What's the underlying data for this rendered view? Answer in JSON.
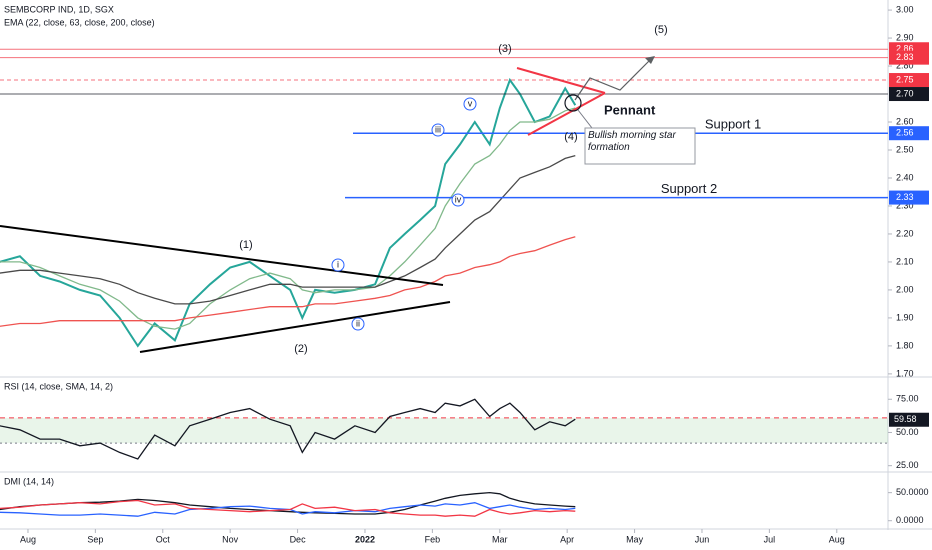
{
  "chart_data": [
    {
      "type": "line",
      "title": "SEMBCORP IND, 1D, SGX",
      "subtitle": "EMA (22, close, 63, close, 200, close)",
      "x": [
        -0.42,
        -0.12,
        0.18,
        0.47,
        0.77,
        1.07,
        1.36,
        1.63,
        1.88,
        2.18,
        2.4,
        2.7,
        3.0,
        3.29,
        3.59,
        3.89,
        4.07,
        4.26,
        4.55,
        4.85,
        5.15,
        5.37,
        5.59,
        5.82,
        6.04,
        6.19,
        6.41,
        6.63,
        6.85,
        7.0,
        7.15,
        7.3,
        7.52,
        7.74,
        7.97,
        8.12
      ],
      "xlim": [
        -0.415,
        12.76
      ],
      "xticks": [
        {
          "value": 0,
          "label": "Aug"
        },
        {
          "value": 1,
          "label": "Sep"
        },
        {
          "value": 2,
          "label": "Oct"
        },
        {
          "value": 3,
          "label": "Nov"
        },
        {
          "value": 4,
          "label": "Dec"
        },
        {
          "value": 5,
          "label": "2022"
        },
        {
          "value": 6,
          "label": "Feb"
        },
        {
          "value": 7,
          "label": "Mar"
        },
        {
          "value": 8,
          "label": "Apr"
        },
        {
          "value": 9,
          "label": "May"
        },
        {
          "value": 10,
          "label": "Jun"
        },
        {
          "value": 11,
          "label": "Jul"
        },
        {
          "value": 12,
          "label": "Aug"
        }
      ],
      "ylim": [
        1.696,
        3.036
      ],
      "yticks": [
        {
          "value": 3.0,
          "label": "3.00"
        },
        {
          "value": 2.9,
          "label": "2.90"
        },
        {
          "value": 2.8,
          "label": "2.80"
        },
        {
          "value": 2.6,
          "label": "2.60"
        },
        {
          "value": 2.5,
          "label": "2.50"
        },
        {
          "value": 2.4,
          "label": "2.40"
        },
        {
          "value": 2.3,
          "label": "2.30"
        },
        {
          "value": 2.2,
          "label": "2.20"
        },
        {
          "value": 2.1,
          "label": "2.10"
        },
        {
          "value": 2.0,
          "label": "2.00"
        },
        {
          "value": 1.9,
          "label": "1.90"
        },
        {
          "value": 1.8,
          "label": "1.80"
        },
        {
          "value": 1.7,
          "label": "1.70"
        }
      ],
      "series": [
        {
          "color": "#26a69a",
          "values": [
            2.1,
            2.12,
            2.05,
            2.03,
            2.0,
            1.98,
            1.9,
            1.8,
            1.88,
            1.82,
            1.95,
            2.02,
            2.08,
            2.1,
            2.05,
            2.0,
            1.9,
            2.0,
            1.99,
            2.0,
            2.02,
            2.15,
            2.2,
            2.25,
            2.3,
            2.45,
            2.52,
            2.6,
            2.52,
            2.65,
            2.75,
            2.7,
            2.6,
            2.62,
            2.72,
            2.66
          ]
        },
        {
          "color": "#81b98b",
          "values": [
            2.1,
            2.1,
            2.08,
            2.05,
            2.02,
            2.0,
            1.96,
            1.9,
            1.87,
            1.86,
            1.88,
            1.95,
            2.0,
            2.04,
            2.06,
            2.04,
            2.0,
            1.99,
            2.0,
            2.0,
            2.01,
            2.05,
            2.1,
            2.16,
            2.22,
            2.3,
            2.38,
            2.45,
            2.48,
            2.52,
            2.57,
            2.6,
            2.6,
            2.61,
            2.64,
            2.65
          ]
        },
        {
          "color": "#4a4a4a",
          "values": [
            2.06,
            2.07,
            2.07,
            2.06,
            2.05,
            2.04,
            2.02,
            1.99,
            1.97,
            1.95,
            1.95,
            1.96,
            1.98,
            2.0,
            2.02,
            2.02,
            2.01,
            2.01,
            2.01,
            2.01,
            2.01,
            2.03,
            2.05,
            2.08,
            2.11,
            2.15,
            2.2,
            2.25,
            2.28,
            2.32,
            2.36,
            2.4,
            2.42,
            2.44,
            2.47,
            2.48
          ]
        },
        {
          "color": "#ef5350",
          "values": [
            1.87,
            1.88,
            1.88,
            1.89,
            1.89,
            1.89,
            1.89,
            1.89,
            1.89,
            1.89,
            1.9,
            1.91,
            1.92,
            1.93,
            1.94,
            1.94,
            1.94,
            1.95,
            1.95,
            1.96,
            1.97,
            1.98,
            2.0,
            2.01,
            2.03,
            2.05,
            2.06,
            2.08,
            2.09,
            2.1,
            2.12,
            2.13,
            2.14,
            2.16,
            2.18,
            2.19
          ]
        }
      ],
      "levels": [
        {
          "value": 2.86,
          "label": "2.86",
          "color": "#f23645"
        },
        {
          "value": 2.83,
          "label": "2.83",
          "color": "#f23645"
        },
        {
          "value": 2.75,
          "label": "2.75",
          "color": "#f23645"
        },
        {
          "value": 2.7,
          "label": "2.70",
          "color": "#131722"
        },
        {
          "value": 2.56,
          "label": "2.56",
          "color": "#2962ff",
          "text": "Support 1"
        },
        {
          "value": 2.33,
          "label": "2.33",
          "color": "#2962ff",
          "text": "Support 2"
        }
      ],
      "annotations": [
        "(1)",
        "(2)",
        "(3)",
        "(4)",
        "(5)",
        "i",
        "ii",
        "iii",
        "iv",
        "v",
        "Pennant",
        "Bullish morning star formation"
      ]
    },
    {
      "type": "line",
      "title": "RSI (14, close, SMA, 14, 2)",
      "ylim": [
        21,
        91
      ],
      "yticks": [
        {
          "value": 75,
          "label": "75.00"
        },
        {
          "value": 50,
          "label": "50.00"
        },
        {
          "value": 25,
          "label": "25.00"
        }
      ],
      "band": [
        42,
        61
      ],
      "series": [
        {
          "color": "#131722",
          "values": [
            55,
            52,
            45,
            45,
            40,
            42,
            35,
            30,
            48,
            40,
            55,
            60,
            65,
            68,
            60,
            55,
            35,
            50,
            45,
            55,
            50,
            62,
            65,
            68,
            65,
            72,
            70,
            75,
            62,
            68,
            72,
            65,
            52,
            58,
            55,
            60
          ]
        }
      ],
      "last": 59.58
    },
    {
      "type": "line",
      "title": "DMI (14, 14)",
      "ylim": [
        -13,
        85
      ],
      "yticks": [
        {
          "value": 50,
          "label": "50.0000"
        },
        {
          "value": 0,
          "label": "0.0000"
        }
      ],
      "series": [
        {
          "color": "#131722",
          "values": [
            20,
            25,
            28,
            30,
            32,
            33,
            35,
            38,
            36,
            32,
            28,
            25,
            22,
            20,
            18,
            16,
            15,
            14,
            13,
            12,
            12,
            15,
            20,
            28,
            35,
            40,
            45,
            48,
            50,
            48,
            40,
            35,
            30,
            28,
            26,
            25
          ]
        },
        {
          "color": "#2962ff",
          "values": [
            15,
            14,
            12,
            10,
            10,
            12,
            10,
            8,
            15,
            12,
            20,
            22,
            25,
            26,
            22,
            20,
            12,
            16,
            14,
            18,
            16,
            22,
            25,
            28,
            26,
            30,
            28,
            32,
            22,
            25,
            28,
            24,
            20,
            22,
            20,
            22
          ]
        },
        {
          "color": "#f23645",
          "values": [
            22,
            24,
            28,
            30,
            32,
            30,
            34,
            36,
            28,
            30,
            22,
            20,
            18,
            16,
            18,
            20,
            30,
            22,
            24,
            18,
            20,
            14,
            12,
            10,
            10,
            8,
            10,
            8,
            20,
            15,
            12,
            14,
            18,
            16,
            18,
            17
          ]
        }
      ]
    }
  ]
}
